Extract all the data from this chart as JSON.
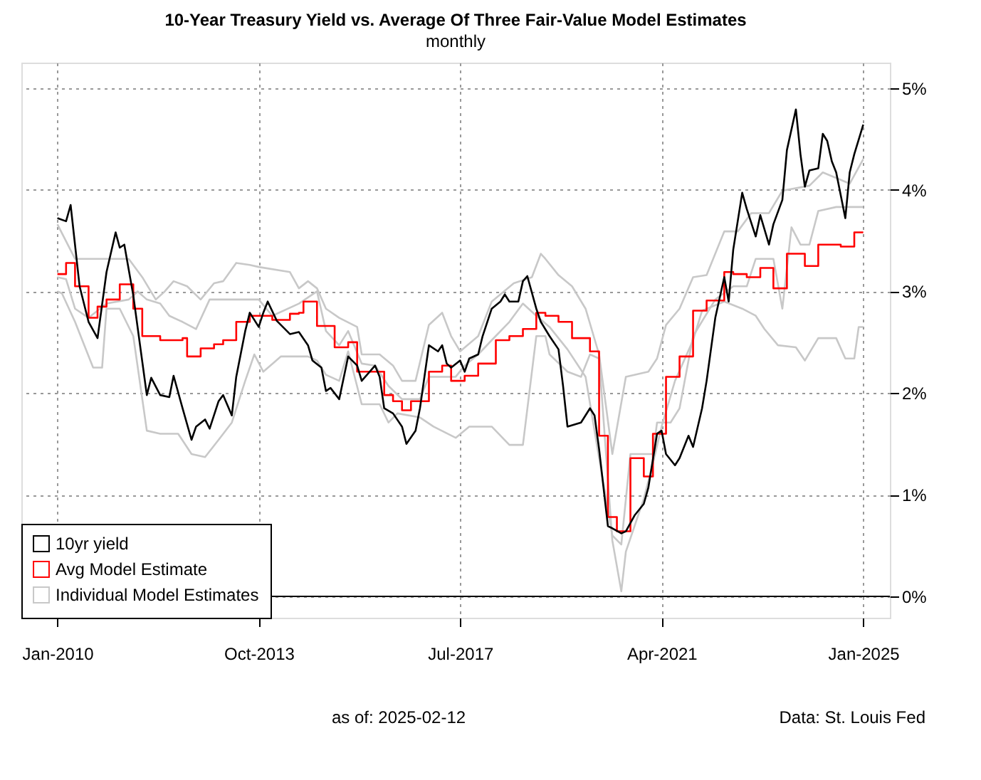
{
  "chart_data": {
    "type": "line",
    "title": "10-Year Treasury Yield vs. Average Of Three Fair-Value Model Estimates",
    "subtitle": "monthly",
    "annotations": [
      "as of:  2025-02-12",
      "Data: St. Louis Fed"
    ],
    "xlim": [
      "2009-05",
      "2025-07"
    ],
    "ylim": [
      -0.21,
      5.25
    ],
    "xticks": [
      {
        "value": "2010-01",
        "label": "Jan-2010"
      },
      {
        "value": "2013-10",
        "label": "Oct-2013"
      },
      {
        "value": "2017-07",
        "label": "Jul-2017"
      },
      {
        "value": "2021-04",
        "label": "Apr-2021"
      },
      {
        "value": "2025-01",
        "label": "Jan-2025"
      }
    ],
    "yticks": [
      {
        "value": 0,
        "label": "0%"
      },
      {
        "value": 1,
        "label": "1%"
      },
      {
        "value": 2,
        "label": "2%"
      },
      {
        "value": 3,
        "label": "3%"
      },
      {
        "value": 4,
        "label": "4%"
      },
      {
        "value": 5,
        "label": "5%"
      }
    ],
    "grid": true,
    "legend": "bottom left",
    "line_style": "solid",
    "ref_lines": [
      {
        "axis": "y",
        "value": 0,
        "color": "#000000"
      }
    ],
    "series": [
      {
        "name": "Individual Model Estimates",
        "color": "#c8c8c8",
        "x": [
          "2010-01",
          "2010-05",
          "2010-12",
          "2011-05",
          "2011-08",
          "2011-11",
          "2012-01",
          "2012-03",
          "2012-06",
          "2012-09",
          "2012-12",
          "2013-02",
          "2013-05",
          "2013-08",
          "2013-10",
          "2014-05",
          "2014-07",
          "2014-09",
          "2014-11",
          "2015-01",
          "2015-04",
          "2015-08",
          "2015-09",
          "2016-01",
          "2016-04",
          "2016-06",
          "2016-09",
          "2016-12",
          "2017-03",
          "2017-05",
          "2017-07",
          "2017-11",
          "2018-02",
          "2018-07",
          "2018-11",
          "2019-01",
          "2019-02",
          "2019-05",
          "2019-08",
          "2019-11",
          "2020-02",
          "2020-05",
          "2020-08",
          "2021-01",
          "2021-03",
          "2021-05",
          "2021-08",
          "2021-11",
          "2022-02",
          "2022-06",
          "2022-09",
          "2022-12",
          "2023-04",
          "2023-07",
          "2024-01",
          "2024-04",
          "2024-10",
          "2025-01"
        ],
        "values": [
          3.66,
          3.32,
          3.32,
          3.32,
          3.14,
          2.92,
          3.0,
          3.1,
          3.05,
          2.92,
          3.08,
          3.1,
          3.28,
          3.26,
          3.24,
          3.19,
          3.03,
          3.1,
          3.03,
          2.83,
          2.74,
          2.65,
          2.38,
          2.38,
          2.27,
          2.12,
          2.12,
          2.67,
          2.79,
          2.56,
          2.41,
          2.56,
          2.9,
          3.08,
          3.14,
          3.37,
          3.32,
          3.16,
          3.05,
          2.83,
          2.38,
          1.4,
          2.16,
          2.21,
          2.34,
          2.67,
          2.83,
          3.14,
          3.16,
          3.59,
          3.59,
          3.77,
          3.77,
          3.99,
          4.04,
          4.17,
          4.06,
          4.3
        ]
      },
      {
        "color": "#c8c8c8",
        "x": [
          "2010-01",
          "2010-03",
          "2010-05",
          "2010-08",
          "2010-12",
          "2011-05",
          "2011-07",
          "2011-09",
          "2011-12",
          "2012-02",
          "2012-05",
          "2012-08",
          "2012-11",
          "2013-10",
          "2014-01",
          "2014-07",
          "2014-11",
          "2015-01",
          "2015-04",
          "2015-06",
          "2015-09",
          "2015-12",
          "2016-03",
          "2016-06",
          "2016-10",
          "2016-12",
          "2017-06",
          "2017-08",
          "2017-11",
          "2018-02",
          "2018-06",
          "2018-09",
          "2018-12",
          "2019-03",
          "2019-07",
          "2019-11",
          "2020-02",
          "2020-05",
          "2020-07",
          "2020-09",
          "2021-02",
          "2021-03",
          "2021-06",
          "2021-08",
          "2021-11",
          "2022-04",
          "2022-08",
          "2022-11",
          "2023-01",
          "2023-05",
          "2023-07",
          "2023-09",
          "2023-11",
          "2024-01",
          "2024-03",
          "2024-07",
          "2025-01"
        ],
        "values": [
          3.14,
          3.12,
          2.83,
          2.74,
          2.88,
          2.92,
          3.0,
          2.92,
          2.88,
          2.76,
          2.7,
          2.63,
          2.92,
          2.92,
          2.76,
          2.88,
          3.0,
          2.61,
          2.47,
          2.61,
          2.29,
          2.27,
          2.07,
          1.94,
          1.94,
          2.16,
          2.16,
          2.27,
          2.38,
          2.52,
          2.7,
          2.88,
          2.76,
          2.65,
          2.43,
          2.16,
          1.36,
          0.6,
          0.51,
          1.4,
          1.4,
          1.71,
          1.71,
          1.85,
          2.56,
          2.92,
          3.05,
          3.05,
          3.32,
          3.32,
          2.83,
          3.63,
          3.46,
          3.46,
          3.79,
          3.83,
          3.83
        ]
      },
      {
        "color": "#c8c8c8",
        "x": [
          "2010-01",
          "2010-02",
          "2010-05",
          "2010-09",
          "2010-11",
          "2010-12",
          "2011-03",
          "2011-06",
          "2011-09",
          "2011-12",
          "2012-04",
          "2012-07",
          "2012-10",
          "2013-01",
          "2013-04",
          "2013-07",
          "2013-09",
          "2013-11",
          "2014-03",
          "2014-09",
          "2014-11",
          "2015-01",
          "2015-04",
          "2015-06",
          "2015-09",
          "2016-01",
          "2016-03",
          "2016-05",
          "2016-10",
          "2017-01",
          "2017-06",
          "2017-09",
          "2018-02",
          "2018-06",
          "2018-09",
          "2018-12",
          "2019-02",
          "2019-03",
          "2019-07",
          "2019-10",
          "2019-12",
          "2020-02",
          "2020-05",
          "2020-07",
          "2020-08",
          "2020-12",
          "2021-02",
          "2021-04",
          "2021-07",
          "2021-11",
          "2022-01",
          "2022-06",
          "2022-10",
          "2023-01",
          "2023-03",
          "2023-06",
          "2023-10",
          "2023-12",
          "2024-03",
          "2024-07",
          "2024-09",
          "2024-11",
          "2024-12",
          "2025-01"
        ],
        "values": [
          3.0,
          2.98,
          2.7,
          2.25,
          2.25,
          2.83,
          2.83,
          2.56,
          1.63,
          1.6,
          1.6,
          1.4,
          1.37,
          1.54,
          1.71,
          2.12,
          2.38,
          2.21,
          2.36,
          2.36,
          2.32,
          2.18,
          2.12,
          2.41,
          1.89,
          1.89,
          1.71,
          1.8,
          1.76,
          1.67,
          1.56,
          1.67,
          1.67,
          1.49,
          1.49,
          2.56,
          2.56,
          2.38,
          2.21,
          2.16,
          2.38,
          2.34,
          0.55,
          0.05,
          0.44,
          0.96,
          1.31,
          1.67,
          2.12,
          2.52,
          2.81,
          2.9,
          2.83,
          2.76,
          2.63,
          2.47,
          2.45,
          2.32,
          2.54,
          2.54,
          2.34,
          2.34,
          2.65,
          2.65
        ]
      },
      {
        "name": "Avg Model Estimate",
        "type": "step",
        "color": "#ff0000",
        "x": [
          "2010-01",
          "2010-03",
          "2010-05",
          "2010-08",
          "2010-10",
          "2010-12",
          "2011-03",
          "2011-06",
          "2011-08",
          "2011-12",
          "2012-05",
          "2012-06",
          "2012-09",
          "2012-12",
          "2013-02",
          "2013-05",
          "2013-08",
          "2014-01",
          "2014-05",
          "2014-07",
          "2014-08",
          "2014-11",
          "2015-03",
          "2015-06",
          "2015-08",
          "2016-02",
          "2016-04",
          "2016-06",
          "2016-08",
          "2016-12",
          "2017-03",
          "2017-05",
          "2017-08",
          "2017-11",
          "2018-03",
          "2018-06",
          "2018-09",
          "2018-12",
          "2019-02",
          "2019-05",
          "2019-08",
          "2019-12",
          "2020-02",
          "2020-04",
          "2020-06",
          "2020-09",
          "2020-12",
          "2021-02",
          "2021-05",
          "2021-08",
          "2021-11",
          "2022-02",
          "2022-06",
          "2022-08",
          "2022-11",
          "2023-02",
          "2023-05",
          "2023-08",
          "2023-12",
          "2024-03",
          "2024-08",
          "2024-11",
          "2025-01"
        ],
        "values": [
          3.17,
          3.28,
          3.05,
          2.74,
          2.85,
          2.92,
          3.07,
          2.83,
          2.56,
          2.52,
          2.54,
          2.36,
          2.44,
          2.48,
          2.52,
          2.7,
          2.76,
          2.72,
          2.78,
          2.79,
          2.9,
          2.66,
          2.45,
          2.5,
          2.21,
          1.98,
          1.92,
          1.83,
          1.92,
          2.21,
          2.27,
          2.12,
          2.17,
          2.29,
          2.52,
          2.56,
          2.63,
          2.79,
          2.76,
          2.7,
          2.54,
          2.41,
          1.58,
          0.78,
          0.64,
          1.36,
          1.18,
          1.6,
          2.16,
          2.36,
          2.81,
          2.91,
          3.19,
          3.17,
          3.14,
          3.23,
          3.03,
          3.37,
          3.25,
          3.46,
          3.44,
          3.58,
          3.58
        ]
      },
      {
        "name": "10yr yield",
        "color": "#000000",
        "x": [
          "2010-01",
          "2010-03",
          "2010-04",
          "2010-06",
          "2010-08",
          "2010-10",
          "2010-12",
          "2011-02",
          "2011-03",
          "2011-04",
          "2011-06",
          "2011-09",
          "2011-10",
          "2011-12",
          "2012-02",
          "2012-03",
          "2012-05",
          "2012-07",
          "2012-08",
          "2012-10",
          "2012-11",
          "2013-01",
          "2013-02",
          "2013-04",
          "2013-05",
          "2013-07",
          "2013-08",
          "2013-10",
          "2013-11",
          "2013-12",
          "2014-02",
          "2014-05",
          "2014-07",
          "2014-09",
          "2014-10",
          "2014-12",
          "2015-01",
          "2015-02",
          "2015-04",
          "2015-06",
          "2015-08",
          "2015-09",
          "2015-12",
          "2016-01",
          "2016-02",
          "2016-04",
          "2016-06",
          "2016-07",
          "2016-09",
          "2016-10",
          "2016-12",
          "2017-02",
          "2017-03",
          "2017-04",
          "2017-05",
          "2017-07",
          "2017-08",
          "2017-09",
          "2017-11",
          "2017-12",
          "2018-02",
          "2018-04",
          "2018-05",
          "2018-06",
          "2018-08",
          "2018-09",
          "2018-10",
          "2018-12",
          "2019-01",
          "2019-03",
          "2019-05",
          "2019-06",
          "2019-07",
          "2019-10",
          "2019-12",
          "2020-01",
          "2020-02",
          "2020-04",
          "2020-05",
          "2020-07",
          "2020-08",
          "2020-10",
          "2020-12",
          "2021-01",
          "2021-03",
          "2021-04",
          "2021-05",
          "2021-07",
          "2021-08",
          "2021-10",
          "2021-11",
          "2022-01",
          "2022-02",
          "2022-04",
          "2022-06",
          "2022-07",
          "2022-08",
          "2022-10",
          "2022-11",
          "2023-01",
          "2023-02",
          "2023-04",
          "2023-05",
          "2023-07",
          "2023-08",
          "2023-10",
          "2023-11",
          "2023-12",
          "2024-01",
          "2024-03",
          "2024-04",
          "2024-05",
          "2024-06",
          "2024-07",
          "2024-09",
          "2024-10",
          "2024-11",
          "2025-01"
        ],
        "values": [
          3.72,
          3.69,
          3.85,
          3.05,
          2.7,
          2.54,
          3.19,
          3.58,
          3.43,
          3.46,
          2.96,
          1.98,
          2.15,
          1.98,
          1.96,
          2.17,
          1.85,
          1.54,
          1.67,
          1.74,
          1.65,
          1.92,
          1.98,
          1.78,
          2.16,
          2.61,
          2.79,
          2.65,
          2.79,
          2.9,
          2.71,
          2.58,
          2.6,
          2.47,
          2.32,
          2.25,
          2.02,
          2.05,
          1.94,
          2.36,
          2.27,
          2.12,
          2.27,
          2.16,
          1.85,
          1.8,
          1.67,
          1.5,
          1.63,
          1.85,
          2.47,
          2.41,
          2.47,
          2.29,
          2.25,
          2.32,
          2.21,
          2.34,
          2.38,
          2.56,
          2.83,
          2.9,
          2.97,
          2.9,
          2.9,
          3.1,
          3.15,
          2.83,
          2.7,
          2.56,
          2.43,
          2.07,
          1.67,
          1.71,
          1.85,
          1.78,
          1.45,
          0.69,
          0.67,
          0.62,
          0.64,
          0.8,
          0.91,
          1.07,
          1.6,
          1.63,
          1.4,
          1.29,
          1.36,
          1.58,
          1.47,
          1.85,
          2.12,
          2.74,
          3.14,
          2.9,
          3.41,
          3.97,
          3.81,
          3.54,
          3.75,
          3.46,
          3.66,
          3.9,
          4.39,
          4.79,
          4.35,
          4.03,
          4.19,
          4.21,
          4.55,
          4.48,
          4.28,
          4.17,
          3.72,
          4.17,
          4.35,
          4.64
        ]
      }
    ]
  }
}
